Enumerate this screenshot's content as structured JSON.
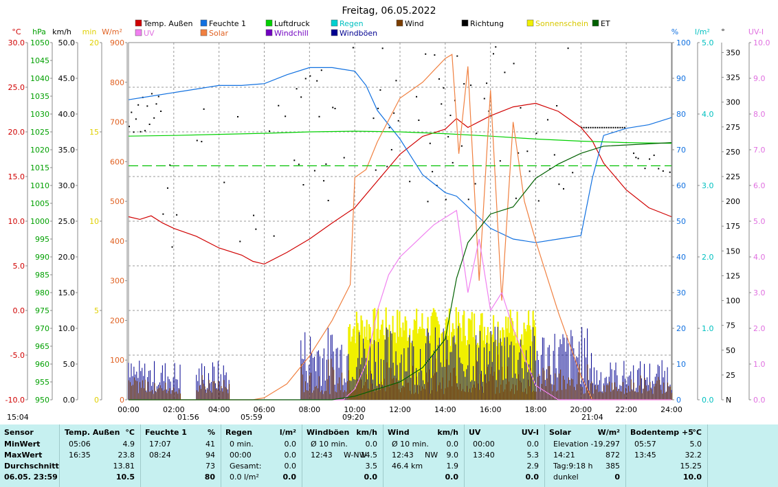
{
  "title": "Freitag, 06.05.2022",
  "chart_data": {
    "type": "line",
    "title": "Freitag, 06.05.2022",
    "x_ticks": [
      "00:00",
      "02:00",
      "04:00",
      "06:00",
      "08:00",
      "10:00",
      "12:00",
      "14:00",
      "16:00",
      "18:00",
      "20:00",
      "22:00",
      "24:00"
    ],
    "axes": {
      "temp": {
        "unit": "°C",
        "color": "#d00000",
        "ticks": [
          "30.0",
          "25.0",
          "20.0",
          "15.0",
          "10.0",
          "5.0",
          "0.0",
          "-5.0",
          "-10.0"
        ],
        "range": [
          -10,
          30
        ]
      },
      "pressure": {
        "unit": "hPa",
        "color": "#00a000",
        "ticks": [
          "1050",
          "1045",
          "1040",
          "1035",
          "1030",
          "1025",
          "1020",
          "1015",
          "1010",
          "1005",
          "1000",
          "995",
          "990",
          "985",
          "980",
          "975",
          "970",
          "965",
          "960",
          "955",
          "950"
        ],
        "range": [
          950,
          1050
        ]
      },
      "wind": {
        "unit": "km/h",
        "color": "#000000",
        "ticks": [
          "50.0",
          "45.0",
          "40.0",
          "35.0",
          "30.0",
          "25.0",
          "20.0",
          "15.0",
          "10.0",
          "5.0",
          "0.0"
        ],
        "range": [
          0,
          50
        ]
      },
      "sun": {
        "unit": "min",
        "color": "#e0d000",
        "ticks": [
          "20",
          "15",
          "10",
          "5",
          "0"
        ],
        "range": [
          0,
          20
        ]
      },
      "solar": {
        "unit": "W/m²",
        "color": "#e06020",
        "ticks": [
          "900",
          "800",
          "700",
          "600",
          "500",
          "400",
          "300",
          "200",
          "100",
          "0"
        ],
        "range": [
          0,
          900
        ]
      },
      "humidity": {
        "unit": "%",
        "color": "#1070e0",
        "ticks": [
          "100",
          "90",
          "80",
          "70",
          "60",
          "50",
          "40",
          "30",
          "20",
          "10",
          "0"
        ],
        "range": [
          0,
          100
        ]
      },
      "rain": {
        "unit": "l/m²",
        "color": "#00c0c0",
        "ticks": [
          "5.0",
          "4.0",
          "3.0",
          "2.0",
          "1.0",
          "0.0"
        ],
        "range": [
          0,
          5
        ]
      },
      "direction": {
        "unit": "°",
        "color": "#000000",
        "ticks": [
          "350",
          "325",
          "300",
          "275",
          "250",
          "225",
          "200",
          "175",
          "150",
          "125",
          "100",
          "75",
          "50",
          "25",
          "N"
        ],
        "range": [
          0,
          360
        ]
      },
      "uv": {
        "unit": "UV-I",
        "color": "#e070e0",
        "ticks": [
          "10.0",
          "9.0",
          "8.0",
          "7.0",
          "6.0",
          "5.0",
          "4.0",
          "3.0",
          "2.0",
          "1.0",
          "0.0"
        ],
        "range": [
          0,
          10
        ]
      }
    },
    "legend": [
      {
        "name": "Temp. Außen",
        "color": "#d00000"
      },
      {
        "name": "Feuchte 1",
        "color": "#1070e0"
      },
      {
        "name": "Luftdruck",
        "color": "#00d000"
      },
      {
        "name": "Regen",
        "color": "#00d0d0"
      },
      {
        "name": "Wind",
        "color": "#7a3d00"
      },
      {
        "name": "Richtung",
        "color": "#000000"
      },
      {
        "name": "Sonnenschein",
        "color": "#f0f000"
      },
      {
        "name": "ET",
        "color": "#006000"
      },
      {
        "name": "UV",
        "color": "#f080f0"
      },
      {
        "name": "Solar",
        "color": "#f08040"
      },
      {
        "name": "Windchill",
        "color": "#7000c0"
      },
      {
        "name": "Windböen",
        "color": "#000090"
      }
    ],
    "series": [
      {
        "name": "Temp. Außen",
        "axis": "temp",
        "x": [
          0,
          0.5,
          1,
          1.5,
          2,
          3,
          4,
          5,
          5.5,
          6,
          7,
          8,
          9,
          10,
          11,
          12,
          13,
          14,
          14.5,
          15,
          16,
          17,
          18,
          19,
          20,
          20.5,
          21,
          22,
          23,
          24
        ],
        "y": [
          10.5,
          10.2,
          10.6,
          9.8,
          9.2,
          8.3,
          7.0,
          6.2,
          5.5,
          5.2,
          6.5,
          8.0,
          9.8,
          11.5,
          14.5,
          17.5,
          19.5,
          20.3,
          21.5,
          20.5,
          21.8,
          22.8,
          23.2,
          22.3,
          20.5,
          19.0,
          16.5,
          13.5,
          11.5,
          10.5
        ]
      },
      {
        "name": "Feuchte 1",
        "axis": "humidity",
        "x": [
          0,
          1,
          2,
          3,
          4,
          5,
          6,
          7,
          8,
          9,
          10,
          10.5,
          11,
          12,
          13,
          14,
          14.5,
          15,
          16,
          17,
          18,
          19,
          20,
          20.5,
          21,
          22,
          23,
          24
        ],
        "y": [
          84,
          85,
          86,
          87,
          88,
          88,
          88.5,
          91,
          93,
          93,
          92,
          88,
          81,
          73,
          63,
          58,
          57,
          54,
          48,
          45,
          44,
          45,
          46,
          62,
          74,
          76,
          77,
          79
        ]
      },
      {
        "name": "Luftdruck",
        "axis": "pressure",
        "x": [
          0,
          2,
          4,
          6,
          8,
          10,
          12,
          14,
          16,
          18,
          20,
          22,
          24
        ],
        "y": [
          1023.8,
          1024.0,
          1024.3,
          1024.6,
          1025.0,
          1025.2,
          1025.0,
          1024.5,
          1023.8,
          1023.0,
          1022.4,
          1022.0,
          1021.8
        ]
      },
      {
        "name": "Solar",
        "axis": "solar",
        "x": [
          0,
          5.5,
          6,
          7,
          8,
          9,
          9.8,
          10,
          10.5,
          11,
          12,
          13,
          14,
          14.3,
          14.6,
          15,
          15.5,
          16,
          16.5,
          17,
          17.5,
          18,
          19,
          20,
          20.5,
          24
        ],
        "y": [
          0,
          0,
          5,
          40,
          110,
          200,
          290,
          560,
          580,
          650,
          760,
          800,
          860,
          870,
          620,
          840,
          300,
          780,
          250,
          700,
          500,
          400,
          220,
          60,
          0,
          0
        ]
      },
      {
        "name": "UV",
        "axis": "uv",
        "x": [
          0,
          9.5,
          10,
          10.5,
          11,
          11.5,
          12,
          12.5,
          13,
          13.5,
          14,
          14.5,
          15,
          15.5,
          16,
          16.5,
          17,
          17.5,
          18,
          19,
          24
        ],
        "y": [
          0,
          0,
          0.3,
          1.0,
          2.5,
          3.5,
          4.0,
          4.3,
          4.6,
          4.9,
          5.1,
          5.3,
          3.0,
          4.5,
          2.5,
          3.0,
          2.0,
          1.2,
          0.4,
          0,
          0
        ]
      },
      {
        "name": "ET",
        "axis": "rain",
        "x": [
          0,
          9,
          10,
          11,
          12,
          13,
          14,
          14.5,
          15,
          16,
          17,
          18,
          19,
          20,
          21,
          24
        ],
        "y": [
          0,
          0,
          0.05,
          0.15,
          0.25,
          0.45,
          0.85,
          1.7,
          2.2,
          2.6,
          2.7,
          3.1,
          3.3,
          3.45,
          3.55,
          3.6
        ]
      },
      {
        "name": "Temp bodenlinie",
        "axis": "pressure",
        "x": [
          0,
          24
        ],
        "y": [
          1015.5,
          1015.5
        ]
      }
    ],
    "markers": [
      {
        "time": "15:04"
      },
      {
        "time": "01:56"
      },
      {
        "time": "05:59"
      },
      {
        "time": "09:20"
      },
      {
        "time": "21:04"
      }
    ],
    "grid": true
  },
  "stats": {
    "col1": {
      "header": "Sensor",
      "rows": [
        "MinWert",
        "MaxWert",
        "Durchschnitt",
        "06.05. 23:59"
      ]
    },
    "col2": {
      "header": "Temp. Außen",
      "unit": "°C",
      "r1a": "05:06",
      "r1b": "4.9",
      "r2a": "16:35",
      "r2b": "23.8",
      "r3b": "13.81",
      "r4b": "10.5"
    },
    "col3": {
      "header": "Feuchte 1",
      "unit": "%",
      "r1a": "17:07",
      "r1b": "41",
      "r2a": "08:24",
      "r2b": "94",
      "r3b": "73",
      "r4b": "80"
    },
    "col4": {
      "header": "Regen",
      "unit": "l/m²",
      "r1a": "0 min.",
      "r1b": "0.0",
      "r2a": "00:00",
      "r2b": "0.0",
      "r3a": "Gesamt:",
      "r3b": "0.0",
      "r4a": "0.0 l/m²",
      "r4b": "0.0"
    },
    "col5": {
      "header": "Windböen",
      "unit": "km/h",
      "r1a": "Ø 10 min.",
      "r1b": "0.0",
      "r2a": "12:43",
      "r2c": "W-NW",
      "r2b": "14.5",
      "r3b": "3.5",
      "r4b": "0.0"
    },
    "col6": {
      "header": "Wind",
      "unit": "km/h",
      "r1a": "Ø 10 min.",
      "r1b": "0.0",
      "r2a": "12:43",
      "r2c": "NW",
      "r2b": "9.0",
      "r3a": "46.4 km",
      "r3b": "1.9",
      "r4b": "0.0"
    },
    "col7": {
      "header": "UV",
      "unit": "UV-I",
      "r1a": "00:00",
      "r1b": "0.0",
      "r2a": "13:40",
      "r2b": "5.3",
      "r3b": "2.9",
      "r4b": "0.0"
    },
    "col8": {
      "header": "Solar",
      "unit": "W/m²",
      "r1a": "Elevation",
      "r1b": "-19.297",
      "r2a": "14:21",
      "r2b": "872",
      "r3a": "Tag:9:18 h",
      "r3b": "385",
      "r4a": "dunkel",
      "r4b": "0"
    },
    "col9": {
      "header": "Bodentemp +5",
      "unit": "°C",
      "r1a": "05:57",
      "r1b": "5.0",
      "r2a": "13:45",
      "r2b": "32.2",
      "r3b": "15.25",
      "r4b": "10.0"
    }
  }
}
